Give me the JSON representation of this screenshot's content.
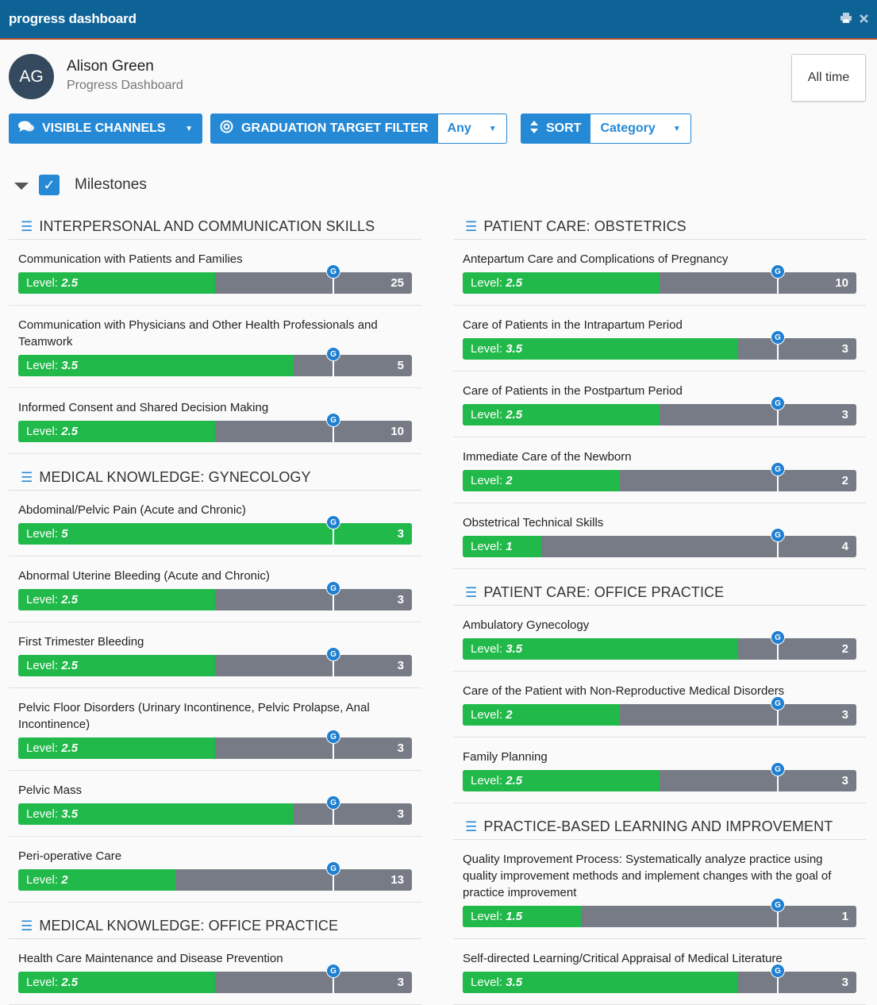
{
  "window": {
    "title": "progress dashboard",
    "print_icon": "print-icon",
    "close_icon": "close-icon"
  },
  "user": {
    "initials": "AG",
    "name": "Alison Green",
    "subtitle": "Progress Dashboard"
  },
  "time_filter": "All time",
  "toolbar": {
    "visible_channels": "VISIBLE CHANNELS",
    "graduation_target_filter": "GRADUATION TARGET FILTER",
    "graduation_value": "Any",
    "sort": "SORT",
    "sort_value": "Category"
  },
  "milestones": {
    "label": "Milestones",
    "checked": true
  },
  "colors": {
    "accent": "#2589d6",
    "progress": "#21b94a",
    "track": "#767b85",
    "header": "#0e6396"
  },
  "left_column": [
    {
      "category": "INTERPERSONAL AND COMMUNICATION SKILLS",
      "items": [
        {
          "name": "Communication with Patients and Families",
          "level_label": "Level:",
          "level": "2.5",
          "fill": 0.5,
          "count": "25"
        },
        {
          "name": "Communication with Physicians and Other Health Professionals and Teamwork",
          "level_label": "Level:",
          "level": "3.5",
          "fill": 0.7,
          "count": "5"
        },
        {
          "name": "Informed Consent and Shared Decision Making",
          "level_label": "Level:",
          "level": "2.5",
          "fill": 0.5,
          "count": "10"
        }
      ]
    },
    {
      "category": "MEDICAL KNOWLEDGE: GYNECOLOGY",
      "items": [
        {
          "name": "Abdominal/Pelvic Pain (Acute and Chronic)",
          "level_label": "Level:",
          "level": "5",
          "fill": 1.0,
          "count": "3"
        },
        {
          "name": "Abnormal Uterine Bleeding (Acute and Chronic)",
          "level_label": "Level:",
          "level": "2.5",
          "fill": 0.5,
          "count": "3"
        },
        {
          "name": "First Trimester Bleeding",
          "level_label": "Level:",
          "level": "2.5",
          "fill": 0.5,
          "count": "3"
        },
        {
          "name": "Pelvic Floor Disorders (Urinary Incontinence, Pelvic Prolapse, Anal Incontinence)",
          "level_label": "Level:",
          "level": "2.5",
          "fill": 0.5,
          "count": "3"
        },
        {
          "name": "Pelvic Mass",
          "level_label": "Level:",
          "level": "3.5",
          "fill": 0.7,
          "count": "3"
        },
        {
          "name": "Peri-operative Care",
          "level_label": "Level:",
          "level": "2",
          "fill": 0.4,
          "count": "13"
        }
      ]
    },
    {
      "category": "MEDICAL KNOWLEDGE: OFFICE PRACTICE",
      "items": [
        {
          "name": "Health Care Maintenance and Disease Prevention",
          "level_label": "Level:",
          "level": "2.5",
          "fill": 0.5,
          "count": "3"
        }
      ]
    }
  ],
  "right_column": [
    {
      "category": "PATIENT CARE: OBSTETRICS",
      "items": [
        {
          "name": "Antepartum Care and Complications of Pregnancy",
          "level_label": "Level:",
          "level": "2.5",
          "fill": 0.5,
          "count": "10"
        },
        {
          "name": "Care of Patients in the Intrapartum Period",
          "level_label": "Level:",
          "level": "3.5",
          "fill": 0.7,
          "count": "3"
        },
        {
          "name": "Care of Patients in the Postpartum Period",
          "level_label": "Level:",
          "level": "2.5",
          "fill": 0.5,
          "count": "3"
        },
        {
          "name": "Immediate Care of the Newborn",
          "level_label": "Level:",
          "level": "2",
          "fill": 0.4,
          "count": "2"
        },
        {
          "name": "Obstetrical Technical Skills",
          "level_label": "Level:",
          "level": "1",
          "fill": 0.2,
          "count": "4"
        }
      ]
    },
    {
      "category": "PATIENT CARE: OFFICE PRACTICE",
      "items": [
        {
          "name": "Ambulatory Gynecology",
          "level_label": "Level:",
          "level": "3.5",
          "fill": 0.7,
          "count": "2"
        },
        {
          "name": "Care of the Patient with Non-Reproductive Medical Disorders",
          "level_label": "Level:",
          "level": "2",
          "fill": 0.4,
          "count": "3"
        },
        {
          "name": "Family Planning",
          "level_label": "Level:",
          "level": "2.5",
          "fill": 0.5,
          "count": "3"
        }
      ]
    },
    {
      "category": "PRACTICE-BASED LEARNING AND IMPROVEMENT",
      "items": [
        {
          "name": "Quality Improvement Process: Systematically analyze practice using quality improvement methods and implement changes with the goal of practice improvement",
          "level_label": "Level:",
          "level": "1.5",
          "fill": 0.3,
          "count": "1"
        },
        {
          "name": "Self-directed Learning/Critical Appraisal of Medical Literature",
          "level_label": "Level:",
          "level": "3.5",
          "fill": 0.7,
          "count": "3"
        }
      ]
    }
  ],
  "graduation_marker": {
    "label": "G",
    "target_fraction": 0.8
  }
}
